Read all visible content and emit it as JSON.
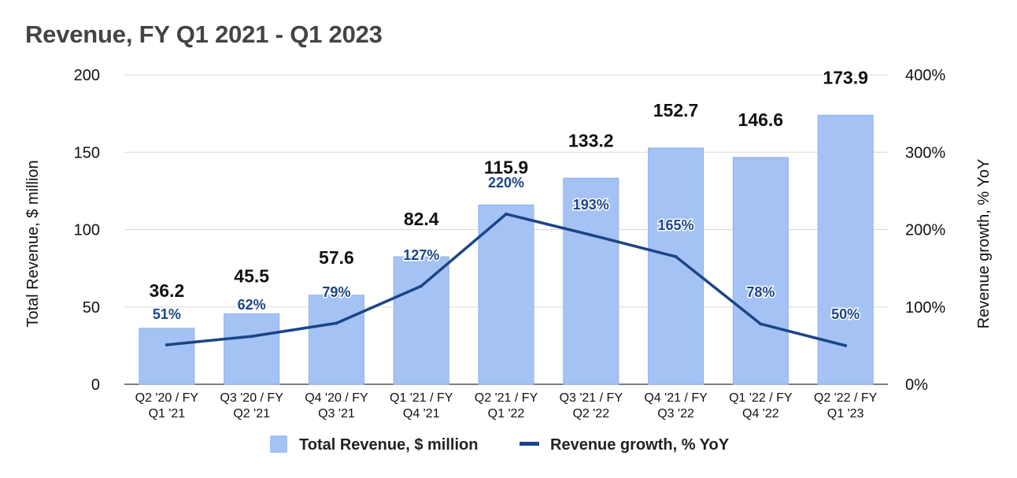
{
  "chart_data": {
    "type": "bar+line",
    "title": "Revenue, FY Q1 2021 - Q1 2023",
    "categories": [
      [
        "Q2 '20 / FY",
        "Q1 '21"
      ],
      [
        "Q3 '20 / FY",
        "Q2 '21"
      ],
      [
        "Q4 '20 / FY",
        "Q3 '21"
      ],
      [
        "Q1 '21 / FY",
        "Q4 '21"
      ],
      [
        "Q2 '21 / FY",
        "Q1 '22"
      ],
      [
        "Q3 '21 / FY",
        "Q2 '22"
      ],
      [
        "Q4 '21 / FY",
        "Q3 '22"
      ],
      [
        "Q1 '22 / FY",
        "Q4 '22"
      ],
      [
        "Q2 '22 / FY",
        "Q1 '23"
      ]
    ],
    "series": [
      {
        "name": "Total Revenue, $ million",
        "type": "bar",
        "axis": "left",
        "values": [
          36.2,
          45.5,
          57.6,
          82.4,
          115.9,
          133.2,
          152.7,
          146.6,
          173.9
        ],
        "labels": [
          "36.2",
          "45.5",
          "57.6",
          "82.4",
          "115.9",
          "133.2",
          "152.7",
          "146.6",
          "173.9"
        ],
        "color": "#a4c2f4"
      },
      {
        "name": "Revenue growth, % YoY",
        "type": "line",
        "axis": "right",
        "values": [
          51,
          62,
          79,
          127,
          220,
          193,
          165,
          78,
          50
        ],
        "labels": [
          "51%",
          "62%",
          "79%",
          "127%",
          "220%",
          "193%",
          "165%",
          "78%",
          "50%"
        ],
        "color": "#1c4587"
      }
    ],
    "left_axis": {
      "label": "Total Revenue, $ million",
      "range": [
        0,
        200
      ],
      "ticks": [
        0,
        50,
        100,
        150,
        200
      ],
      "tick_labels": [
        "0",
        "50",
        "100",
        "150",
        "200"
      ]
    },
    "right_axis": {
      "label": "Revenue growth, % YoY",
      "range": [
        0,
        400
      ],
      "ticks": [
        0,
        100,
        200,
        300,
        400
      ],
      "tick_labels": [
        "0%",
        "100%",
        "200%",
        "300%",
        "400%"
      ]
    },
    "grid": true,
    "legend_position": "bottom"
  }
}
